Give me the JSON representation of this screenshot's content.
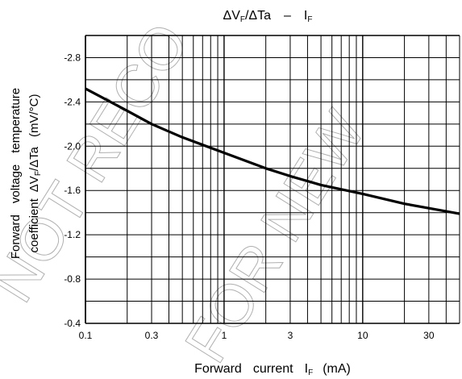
{
  "chart_data": {
    "type": "line",
    "title": "ΔVF/ΔTa  –  IF",
    "title_parts": {
      "delta1": "Δ",
      "v": "V",
      "f1": "F",
      "slash": "/",
      "delta2": "Δ",
      "ta": "Ta",
      "dash": "–",
      "i": "I",
      "f2": "F"
    },
    "xlabel": "Forward current IF (mA)",
    "xlabel_parts": {
      "w1": "Forward",
      "w2": "current",
      "i": "I",
      "f": "F",
      "unit": "(mA)"
    },
    "ylabel": "Forward voltage temperature coefficient ΔVF/ΔTa (mV/°C)",
    "ylabel_parts": {
      "line1": [
        "Forward",
        "voltage",
        "temperature"
      ],
      "line2_prefix": "coefficient",
      "delta1": "Δ",
      "v": "V",
      "f": "F",
      "slash": "/",
      "delta2": "Δ",
      "ta": "Ta",
      "unit": "(mV/°C)"
    },
    "x_scale": "log",
    "xlim": [
      0.1,
      50
    ],
    "ylim": [
      -0.4,
      -3.0
    ],
    "x_ticks": [
      0.1,
      0.3,
      1,
      3,
      10,
      30
    ],
    "x_tick_labels": [
      "0.1",
      "0.3",
      "1",
      "3",
      "10",
      "30"
    ],
    "y_ticks": [
      -0.4,
      -0.8,
      -1.2,
      -1.6,
      -2.0,
      -2.4,
      -2.8
    ],
    "y_tick_labels": [
      "-0.4",
      "-0.8",
      "-1.2",
      "-1.6",
      "-2.0",
      "-2.4",
      "-2.8"
    ],
    "grid": true,
    "series": [
      {
        "x": [
          0.1,
          0.2,
          0.3,
          0.5,
          1,
          2,
          3,
          5,
          10,
          20,
          30,
          50
        ],
        "y": [
          -2.52,
          -2.32,
          -2.2,
          -2.08,
          -1.94,
          -1.8,
          -1.73,
          -1.65,
          -1.57,
          -1.48,
          -1.44,
          -1.39
        ]
      }
    ],
    "colors": {
      "line": "#000000",
      "grid": "#000000",
      "watermark": "#b0b0b0"
    }
  },
  "watermark": "NOT RECOMMENDED FOR NEW DESIGN"
}
